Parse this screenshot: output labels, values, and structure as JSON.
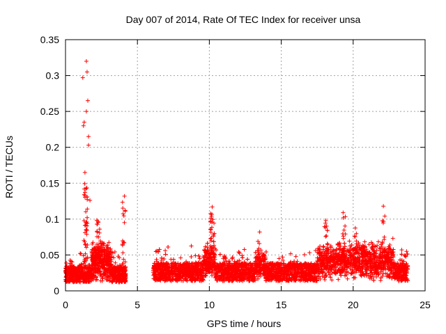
{
  "chart_data": {
    "type": "scatter",
    "title": "Day 007 of 2014, Rate Of TEC Index for receiver unsa",
    "xlabel": "GPS time / hours",
    "ylabel": "ROTI / TECUs",
    "xlim": [
      0,
      25
    ],
    "ylim": [
      0,
      0.35
    ],
    "grid": true,
    "marker": "+",
    "color": "#ff0000",
    "xticks": [
      0,
      5,
      10,
      15,
      20,
      25
    ],
    "xtick_labels": [
      "0",
      "5",
      "10",
      "15",
      "20",
      "25"
    ],
    "yticks": [
      0,
      0.05,
      0.1,
      0.15,
      0.2,
      0.25,
      0.3,
      0.35
    ],
    "ytick_labels": [
      "0",
      "0.05",
      "0.1",
      "0.15",
      "0.2",
      "0.25",
      "0.3",
      "0.35"
    ],
    "notable_points": [
      {
        "x": 1.45,
        "y": 0.32
      },
      {
        "x": 1.5,
        "y": 0.305
      },
      {
        "x": 1.2,
        "y": 0.297
      },
      {
        "x": 1.55,
        "y": 0.265
      },
      {
        "x": 1.45,
        "y": 0.25
      },
      {
        "x": 1.3,
        "y": 0.235
      },
      {
        "x": 1.25,
        "y": 0.23
      },
      {
        "x": 1.6,
        "y": 0.215
      },
      {
        "x": 1.6,
        "y": 0.203
      },
      {
        "x": 1.35,
        "y": 0.165
      },
      {
        "x": 1.7,
        "y": 0.126
      },
      {
        "x": 4.1,
        "y": 0.132
      },
      {
        "x": 10.2,
        "y": 0.117
      },
      {
        "x": 22.1,
        "y": 0.118
      },
      {
        "x": 19.3,
        "y": 0.109
      },
      {
        "x": 18.1,
        "y": 0.098
      },
      {
        "x": 13.5,
        "y": 0.082
      }
    ],
    "data_gap_hours": [
      4.25,
      6.1
    ],
    "segments": [
      {
        "x_start": 0.0,
        "x_end": 4.2,
        "base": 0.022,
        "spread": 0.022
      },
      {
        "x_start": 6.1,
        "x_end": 23.8,
        "base": 0.025,
        "spread": 0.025
      }
    ]
  }
}
